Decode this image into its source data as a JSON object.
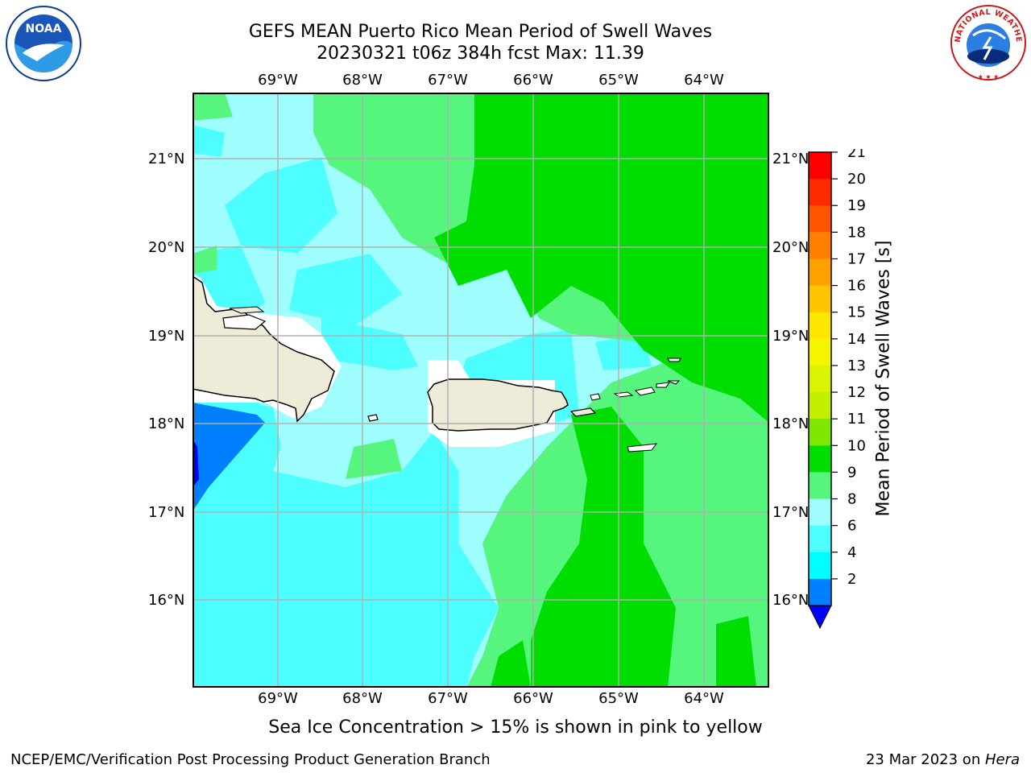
{
  "title": {
    "line1": "GEFS MEAN Puerto Rico Mean Period of Swell Waves",
    "line2": "20230321 t06z 384h fcst   Max: 11.39"
  },
  "logos": {
    "left": {
      "icon": "noaa-logo-icon",
      "text": "NOAA"
    },
    "right": {
      "icon": "nws-logo-icon",
      "text": "NATIONAL WEATHER SERVICE"
    }
  },
  "map": {
    "lon_labels": [
      "69°W",
      "68°W",
      "67°W",
      "66°W",
      "65°W",
      "64°W"
    ],
    "lat_labels": [
      "21°N",
      "20°N",
      "19°N",
      "18°N",
      "17°N",
      "16°N"
    ],
    "land_color": "#eeebd8",
    "coast_color": "#000000",
    "grid_color": "#b0b0b0"
  },
  "colorbar": {
    "label": "Mean Period of Swell Waves [s]",
    "ticks": [
      "21",
      "20",
      "19",
      "18",
      "17",
      "16",
      "15",
      "14",
      "13",
      "12",
      "11",
      "10",
      "9",
      "8",
      "6",
      "4",
      "2"
    ],
    "colors": [
      "#ff0000",
      "#ff2a00",
      "#ff5500",
      "#ff8000",
      "#ffa200",
      "#ffc400",
      "#ffe600",
      "#f5f500",
      "#dbf200",
      "#c2ee00",
      "#7fe800",
      "#00dd00",
      "#55f57e",
      "#9efefe",
      "#4cfefe",
      "#00feff",
      "#0080ff"
    ],
    "under_color": "#0000ff"
  },
  "note": "Sea Ice Concentration > 15% is shown in pink to yellow",
  "footer": {
    "left": "NCEP/EMC/Verification Post Processing Product Generation Branch",
    "right_date": "23 Mar 2023 on ",
    "right_host": "Hera"
  }
}
